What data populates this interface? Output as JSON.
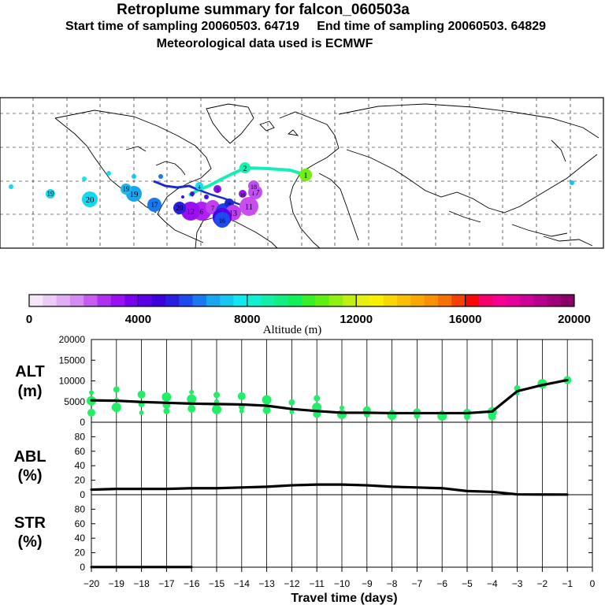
{
  "header": {
    "title": "Retroplume summary for falcon_060503a",
    "sampling_line": "Start time of sampling 20060503. 64719     End time of sampling 20060503. 64829",
    "met_line": "Meteorological data used is ECMWF"
  },
  "colorbar": {
    "ticks": [
      "0",
      "4000",
      "8000",
      "12000",
      "16000",
      "20000"
    ],
    "label": "Altitude (m)",
    "colors": [
      "#f5e6f8",
      "#ecccf5",
      "#e0aef3",
      "#d58cf2",
      "#c85cf0",
      "#b030f0",
      "#9a10f0",
      "#7a00f0",
      "#5a00e6",
      "#3c00e0",
      "#2a1ee0",
      "#1e4af0",
      "#1a78f0",
      "#18a6f0",
      "#14c8f0",
      "#10e8f0",
      "#10f0d2",
      "#10f0a8",
      "#10f080",
      "#10f058",
      "#38f028",
      "#60f010",
      "#90f010",
      "#c0f010",
      "#e8f010",
      "#f8f000",
      "#f8d800",
      "#f8c000",
      "#f8a800",
      "#f89000",
      "#f87000",
      "#f84000",
      "#f80808",
      "#f8006c",
      "#f80090",
      "#e8009a",
      "#d0009a",
      "#b8008c",
      "#a0007a",
      "#880068"
    ]
  },
  "map": {
    "plume_labels": [
      "1",
      "2",
      "3",
      "4",
      "5",
      "6",
      "7",
      "8",
      "9",
      "10",
      "11",
      "12",
      "13",
      "14",
      "15",
      "16",
      "17",
      "18",
      "19",
      "20"
    ],
    "extra_numbers": [
      "17",
      "19",
      "19",
      "20"
    ]
  },
  "chart_data": [
    {
      "type": "line",
      "panel": "ALT",
      "ylabel": "ALT (m)",
      "ylabel_lines": [
        "ALT",
        "(m)"
      ],
      "ylim": [
        0,
        20000
      ],
      "yticks": [
        "0",
        "5000",
        "10000",
        "15000",
        "20000"
      ],
      "x": [
        -20,
        -19,
        -18,
        -17,
        -16,
        -15,
        -14,
        -13,
        -12,
        -11,
        -10,
        -9,
        -8,
        -7,
        -6,
        -5,
        -4,
        -3,
        -2,
        -1
      ],
      "values": [
        5300,
        5200,
        4900,
        4700,
        4500,
        4400,
        4300,
        4000,
        3200,
        2700,
        2300,
        2300,
        2200,
        2200,
        2200,
        2200,
        2600,
        7500,
        9000,
        10200
      ],
      "scatter_points": [
        [
          -20,
          7200
        ],
        [
          -20,
          5200
        ],
        [
          -20,
          2300
        ],
        [
          -19,
          7900
        ],
        [
          -19,
          5400
        ],
        [
          -19,
          3600
        ],
        [
          -18,
          6700
        ],
        [
          -18,
          4400
        ],
        [
          -18,
          2300
        ],
        [
          -17,
          6100
        ],
        [
          -17,
          4200
        ],
        [
          -17,
          2700
        ],
        [
          -16,
          7300
        ],
        [
          -16,
          5600
        ],
        [
          -16,
          3300
        ],
        [
          -15,
          6600
        ],
        [
          -15,
          5000
        ],
        [
          -15,
          3100
        ],
        [
          -14,
          6300
        ],
        [
          -14,
          3800
        ],
        [
          -14,
          2700
        ],
        [
          -13,
          5400
        ],
        [
          -13,
          2900
        ],
        [
          -12,
          4800
        ],
        [
          -12,
          2500
        ],
        [
          -11,
          3600
        ],
        [
          -11,
          2000
        ],
        [
          -11,
          5800
        ],
        [
          -10,
          3500
        ],
        [
          -10,
          1900
        ],
        [
          -9,
          2900
        ],
        [
          -9,
          1900
        ],
        [
          -8,
          2500
        ],
        [
          -8,
          1700
        ],
        [
          -7,
          2400
        ],
        [
          -7,
          1600
        ],
        [
          -6,
          2300
        ],
        [
          -6,
          1500
        ],
        [
          -5,
          2300
        ],
        [
          -5,
          1300
        ],
        [
          -4,
          3200
        ],
        [
          -4,
          2500
        ],
        [
          -4,
          1400
        ],
        [
          -3,
          8200
        ],
        [
          -3,
          7000
        ],
        [
          -2,
          9300
        ],
        [
          -1,
          10200
        ]
      ]
    },
    {
      "type": "line",
      "panel": "ABL",
      "ylabel": "ABL (%)",
      "ylabel_lines": [
        "ABL",
        "(%)"
      ],
      "ylim": [
        0,
        100
      ],
      "yticks": [
        "0",
        "20",
        "40",
        "60",
        "80"
      ],
      "x": [
        -20,
        -19,
        -18,
        -17,
        -16,
        -15,
        -14,
        -13,
        -12,
        -11,
        -10,
        -9,
        -8,
        -7,
        -6,
        -5,
        -4,
        -3,
        -2,
        -1
      ],
      "values": [
        7,
        8,
        8,
        8,
        9,
        9,
        10,
        11,
        13,
        14,
        14,
        13,
        11,
        10,
        9,
        5,
        4,
        0.5,
        0.3,
        0.2
      ]
    },
    {
      "type": "line",
      "panel": "STR",
      "ylabel": "STR (%)",
      "ylabel_lines": [
        "STR",
        "(%)"
      ],
      "ylim": [
        0,
        100
      ],
      "yticks": [
        "0",
        "20",
        "40",
        "60",
        "80"
      ],
      "x": [
        -20,
        -19,
        -18,
        -17,
        -16
      ],
      "values": [
        0.2,
        0.2,
        0.2,
        0.2,
        0.2
      ]
    }
  ],
  "xaxis": {
    "label": "Travel time (days)",
    "ticks": [
      "−20",
      "−19",
      "−18",
      "−17",
      "−16",
      "−15",
      "−14",
      "−13",
      "−12",
      "−11",
      "−10",
      "−9",
      "−8",
      "−7",
      "−6",
      "−5",
      "−4",
      "−3",
      "−2",
      "−1",
      "0"
    ]
  }
}
